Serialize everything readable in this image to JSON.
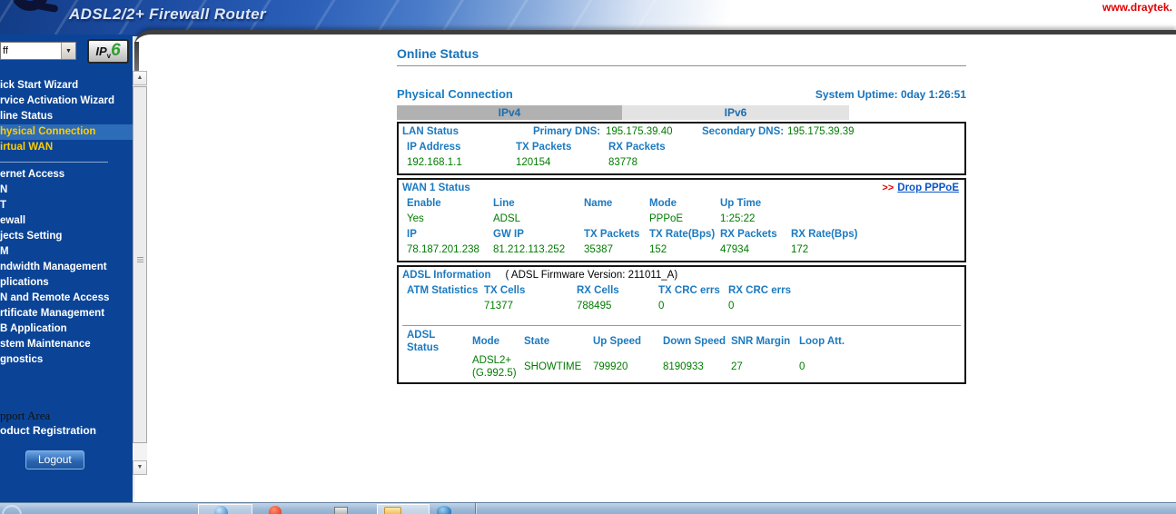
{
  "banner": {
    "subtitle": "ADSL2/2+ Firewall Router",
    "website": "www.draytek."
  },
  "icons": {
    "dropdown_arrow": "▼",
    "scroll_up": "▲",
    "scroll_down": "▼"
  },
  "sidebar": {
    "dropdown_value": "ff",
    "ipv6": {
      "ip": "IP",
      "v": "v",
      "six": "6"
    },
    "menu": [
      {
        "label": "ick Start Wizard"
      },
      {
        "label": "rvice Activation Wizard"
      },
      {
        "label": "line Status"
      },
      {
        "label": "hysical Connection",
        "active": true
      },
      {
        "label": "irtual WAN",
        "highlighted": true
      },
      {
        "label": "ernet Access"
      },
      {
        "label": "N"
      },
      {
        "label": "T"
      },
      {
        "label": "ewall"
      },
      {
        "label": "jects Setting"
      },
      {
        "label": "M"
      },
      {
        "label": "ndwidth Management"
      },
      {
        "label": "plications"
      },
      {
        "label": "N and Remote Access"
      },
      {
        "label": "rtificate Management"
      },
      {
        "label": "B Application"
      },
      {
        "label": "stem Maintenance"
      },
      {
        "label": "gnostics"
      }
    ],
    "support_area": "pport Area",
    "product_registration": "oduct Registration",
    "logout_label": "Logout"
  },
  "main": {
    "title": "Online Status",
    "section_title": "Physical Connection",
    "system_uptime": "System Uptime: 0day 1:26:51",
    "tabs": [
      {
        "label": "IPv4",
        "active": true
      },
      {
        "label": "IPv6",
        "active": false
      }
    ],
    "lan": {
      "title": "LAN Status",
      "primary_dns_label": "Primary DNS:",
      "primary_dns_value": "195.175.39.40",
      "secondary_dns_label": "Secondary DNS:",
      "secondary_dns_value": "195.175.39.39",
      "headers": [
        "IP Address",
        "TX Packets",
        "RX Packets"
      ],
      "values": [
        "192.168.1.1",
        "120154",
        "83778"
      ]
    },
    "wan": {
      "title": "WAN 1 Status",
      "action_prefix": ">>",
      "action_link": "Drop PPPoE",
      "row1_headers": [
        "Enable",
        "Line",
        "Name",
        "Mode",
        "Up Time"
      ],
      "row1_values": [
        "Yes",
        "ADSL",
        "",
        "PPPoE",
        "1:25:22"
      ],
      "row2_headers": [
        "IP",
        "GW IP",
        "TX Packets",
        "TX Rate(Bps)",
        "RX Packets",
        "RX Rate(Bps)"
      ],
      "row2_values": [
        "78.187.201.238",
        "81.212.113.252",
        "35387",
        "152",
        "47934",
        "172"
      ]
    },
    "adsl": {
      "title": "ADSL Information",
      "firmware_note": "( ADSL Firmware Version:  211011_A)",
      "atm_headers": [
        "ATM Statistics",
        "TX Cells",
        "RX Cells",
        "TX CRC errs",
        "RX CRC errs"
      ],
      "atm_values": [
        "",
        "71377",
        "788495",
        "0",
        "0"
      ],
      "status": {
        "label_line1": "ADSL",
        "label_line2": "Status",
        "headers": [
          "Mode",
          "State",
          "Up Speed",
          "Down Speed",
          "SNR Margin",
          "Loop Att."
        ],
        "mode_line1": "ADSL2+",
        "mode_line2": "(G.992.5)",
        "values": [
          "SHOWTIME",
          "799920",
          "8190933",
          "27",
          "0"
        ]
      }
    }
  },
  "colors": {
    "sidebar_bg": "#0b4496",
    "menu_highlight_bg": "#2d6cb8",
    "menu_highlight_text": "#ffcc00",
    "label_blue": "#1c7ac0",
    "value_green": "#007c00",
    "link_blue": "#0a55c5",
    "alert_red": "#e00000",
    "brand_red": "#e00000",
    "tab_active_bg": "#b1b1b1",
    "tab_inactive_bg": "#e3e3e3"
  }
}
